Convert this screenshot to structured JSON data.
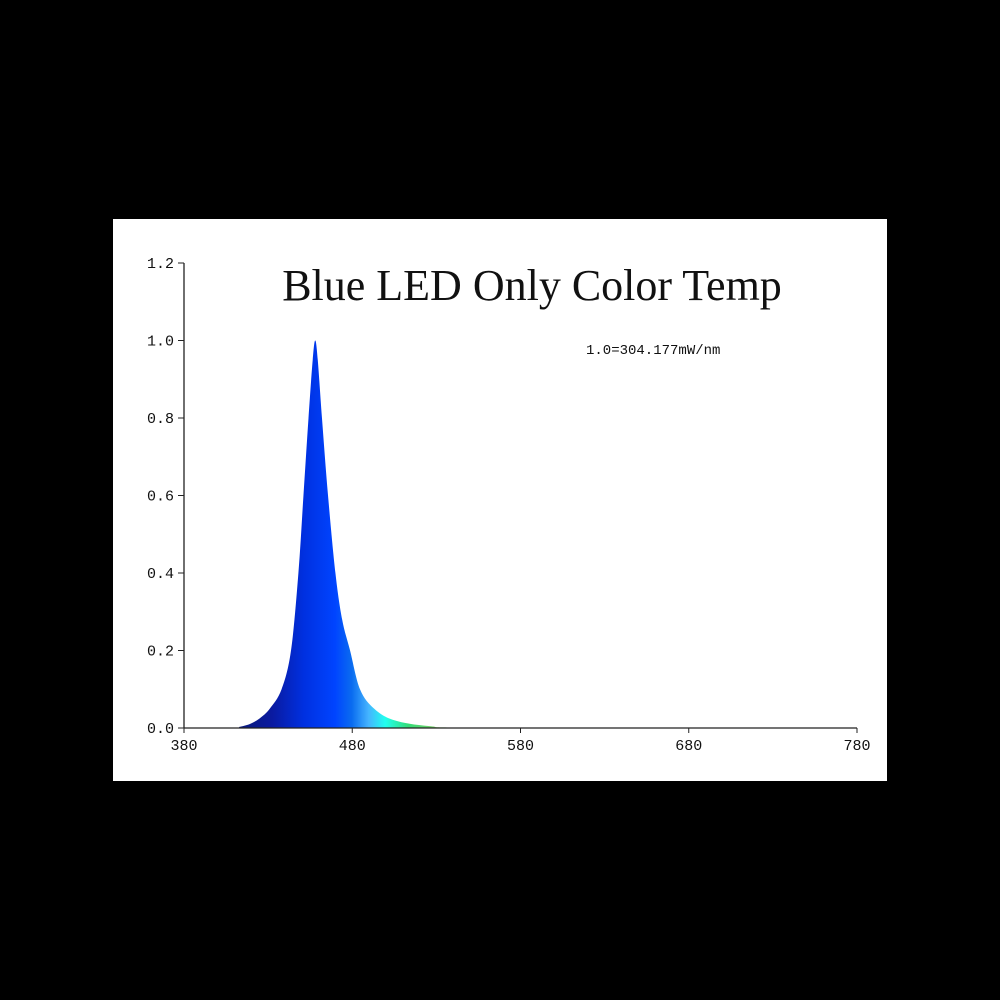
{
  "chart_data": {
    "type": "area",
    "title": "Blue LED Only Color Temp",
    "annotation": "1.0=304.177mW/nm",
    "xlabel": "",
    "ylabel": "",
    "xlim": [
      380,
      780
    ],
    "ylim": [
      0,
      1.2
    ],
    "grid": false,
    "x_ticks": [
      "380",
      "480",
      "580",
      "680",
      "780"
    ],
    "y_ticks": [
      "0.0",
      "0.2",
      "0.4",
      "0.6",
      "0.8",
      "1.0",
      "1.2"
    ],
    "x": [
      380,
      410,
      413,
      419,
      425,
      431,
      438,
      443.6,
      448,
      451,
      454,
      456.5,
      458,
      459.5,
      462,
      465.6,
      470,
      474,
      478.7,
      484.6,
      493,
      505,
      526,
      560,
      780
    ],
    "y": [
      0,
      0,
      0.003,
      0.01,
      0.025,
      0.05,
      0.1,
      0.2,
      0.4,
      0.6,
      0.8,
      0.95,
      1.0,
      0.95,
      0.8,
      0.6,
      0.4,
      0.28,
      0.2,
      0.1,
      0.05,
      0.02,
      0.005,
      0.001,
      0
    ],
    "colors": {
      "deep": "#0a1a80",
      "blue": "#0033ee",
      "light_blue": "#2a8cff",
      "cyan": "#22ffee",
      "green": "#33dd66"
    }
  }
}
